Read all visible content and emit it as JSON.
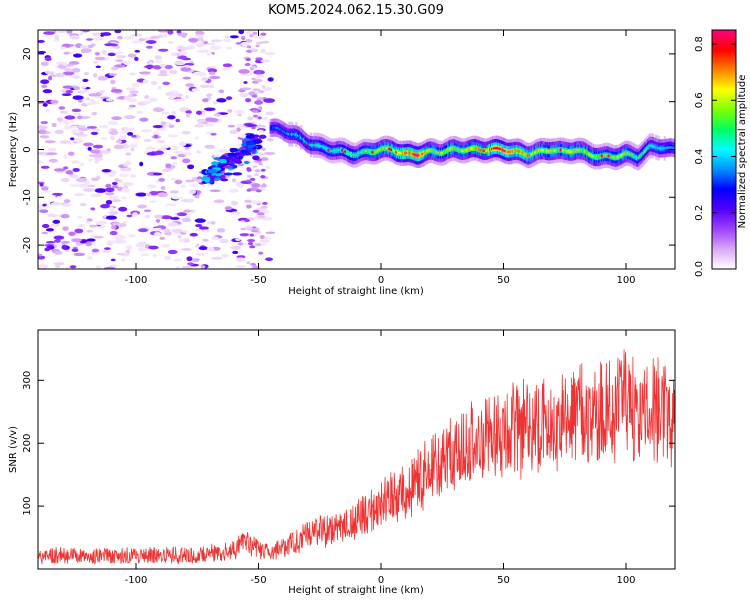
{
  "chart_data": [
    {
      "type": "heatmap",
      "title": "KOM5.2024.062.15.30.G09",
      "xlabel": "Height of straight line (km)",
      "ylabel": "Frequency (Hz)",
      "xlim": [
        -140,
        120
      ],
      "ylim": [
        -25,
        25
      ],
      "x_ticks": [
        -100,
        -50,
        0,
        50,
        100
      ],
      "y_ticks": [
        -20,
        -10,
        0,
        10,
        20
      ],
      "colorbar": {
        "label": "Normalized spectral amplitude",
        "range": [
          0,
          0.85
        ],
        "ticks": [
          0.0,
          0.2,
          0.4,
          0.6,
          0.8
        ],
        "colors": [
          "#ffffff",
          "#d9a8f5",
          "#a040ff",
          "#5000ff",
          "#0000ff",
          "#0090ff",
          "#00ffff",
          "#00ff60",
          "#80ff00",
          "#ffff00",
          "#ff8000",
          "#ff0000",
          "#ff0080"
        ]
      },
      "ridge": {
        "x": [
          -45,
          -40,
          -35,
          -30,
          -25,
          -20,
          -15,
          -10,
          -5,
          0,
          5,
          10,
          15,
          20,
          25,
          30,
          35,
          40,
          45,
          50,
          55,
          60,
          65,
          70,
          75,
          80,
          85,
          90,
          95,
          100,
          105,
          110,
          115,
          120
        ],
        "y": [
          4.5,
          4,
          3,
          1.5,
          0.5,
          0,
          -0.5,
          -1,
          -0.5,
          0,
          0,
          -1,
          -1,
          -0.5,
          -0.5,
          0,
          0,
          0,
          0,
          0,
          -0.5,
          -1,
          -0.5,
          0,
          -0.5,
          0,
          -1,
          -1.5,
          -1.5,
          -1,
          -1.5,
          0.5,
          0.5,
          0
        ],
        "amplitude": [
          0.3,
          0.35,
          0.4,
          0.4,
          0.45,
          0.45,
          0.5,
          0.5,
          0.55,
          0.6,
          0.65,
          0.75,
          0.8,
          0.6,
          0.55,
          0.6,
          0.6,
          0.65,
          0.7,
          0.8,
          0.7,
          0.65,
          0.6,
          0.6,
          0.6,
          0.6,
          0.6,
          0.55,
          0.55,
          0.6,
          0.5,
          0.45,
          0.4,
          0.35
        ]
      }
    },
    {
      "type": "line",
      "xlabel": "Height of straight line (km)",
      "ylabel": "SNR (v/v)",
      "xlim": [
        -140,
        120
      ],
      "ylim": [
        0,
        380
      ],
      "x_ticks": [
        -100,
        -50,
        0,
        50,
        100
      ],
      "y_ticks": [
        100,
        200,
        300
      ],
      "series": [
        {
          "color": "#ee3333",
          "x": [
            -140,
            -130,
            -120,
            -110,
            -100,
            -90,
            -80,
            -70,
            -60,
            -55,
            -50,
            -45,
            -40,
            -35,
            -30,
            -25,
            -20,
            -15,
            -10,
            -5,
            0,
            5,
            10,
            15,
            20,
            25,
            30,
            35,
            40,
            45,
            50,
            55,
            60,
            65,
            70,
            75,
            80,
            85,
            90,
            95,
            100,
            105,
            110,
            115,
            120
          ],
          "y": [
            20,
            22,
            20,
            21,
            22,
            22,
            22,
            25,
            30,
            45,
            30,
            25,
            35,
            45,
            55,
            60,
            65,
            70,
            80,
            90,
            100,
            115,
            125,
            140,
            155,
            170,
            185,
            200,
            210,
            215,
            215,
            225,
            225,
            230,
            235,
            240,
            240,
            245,
            250,
            250,
            255,
            255,
            260,
            250,
            250
          ]
        }
      ]
    }
  ]
}
